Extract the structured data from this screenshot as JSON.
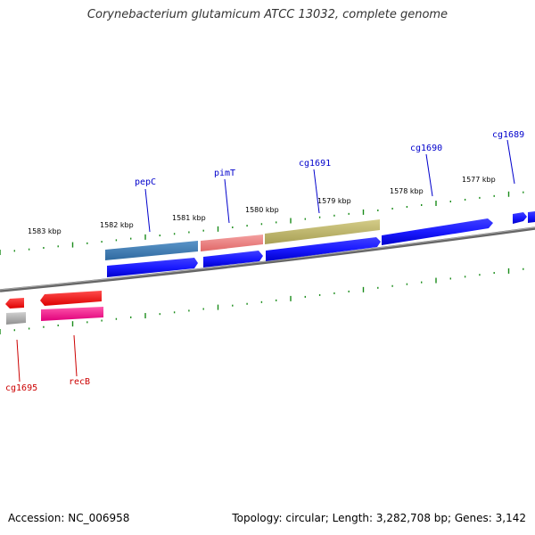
{
  "title": "Corynebacterium glutamicum ATCC 13032, complete genome",
  "footer": {
    "accession": "Accession: NC_006958",
    "summary": "Topology: circular; Length: 3,282,708 bp; Genes: 3,142"
  },
  "colors": {
    "cds_blue": "#1a1aff",
    "label_blue": "#0000cc",
    "label_red": "#cc0000",
    "backbone": "#777777",
    "tick": "#1a8c1a",
    "pepC": "#3d7ab3",
    "pimT": "#f08080",
    "cg1691_feature": "#bdb76b",
    "recB": "#ff1493",
    "cg1695_red": "#ff1a1a",
    "grey_feature": "#b0b0b0"
  },
  "scale": {
    "ticks": [
      {
        "label": "1583 kbp"
      },
      {
        "label": "1582 kbp"
      },
      {
        "label": "1581 kbp"
      },
      {
        "label": "1580 kbp"
      },
      {
        "label": "1579 kbp"
      },
      {
        "label": "1578 kbp"
      },
      {
        "label": "1577 kbp"
      }
    ]
  },
  "genes": [
    {
      "name": "pepC",
      "strand": "top"
    },
    {
      "name": "pimT",
      "strand": "top"
    },
    {
      "name": "cg1691",
      "strand": "top"
    },
    {
      "name": "cg1690",
      "strand": "top"
    },
    {
      "name": "cg1689",
      "strand": "top"
    },
    {
      "name": "cg1695",
      "strand": "bottom"
    },
    {
      "name": "recB",
      "strand": "bottom"
    }
  ]
}
